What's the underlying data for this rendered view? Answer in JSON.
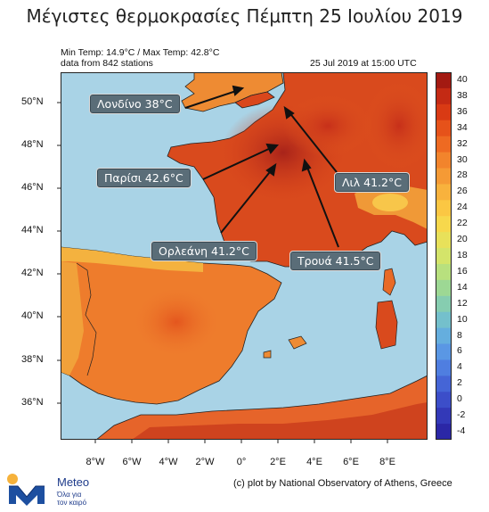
{
  "title": "Μέγιστες θερμοκρασίες Πέμπτη 25 Ιουλίου 2019",
  "info": {
    "minmax": "Min Temp: 14.9°C / Max Temp: 42.8°C",
    "stations": "data from 842 stations",
    "datetime": "25 Jul 2019 at 15:00 UTC"
  },
  "axes": {
    "lat_labels": [
      "50°N",
      "48°N",
      "46°N",
      "44°N",
      "42°N",
      "40°N",
      "38°N",
      "36°N"
    ],
    "lon_labels": [
      "8°W",
      "6°W",
      "4°W",
      "2°W",
      "0°",
      "2°E",
      "4°E",
      "6°E",
      "8°E"
    ]
  },
  "colorbar": {
    "labels": [
      "40",
      "38",
      "36",
      "34",
      "32",
      "30",
      "28",
      "26",
      "24",
      "22",
      "20",
      "18",
      "16",
      "14",
      "12",
      "10",
      "8",
      "6",
      "4",
      "2",
      "0",
      "-2",
      "-4"
    ],
    "colors": [
      "#a31a12",
      "#c42a14",
      "#d93a14",
      "#e6521a",
      "#ee6a22",
      "#f2842c",
      "#f59a35",
      "#f8b23d",
      "#fbc743",
      "#f7d84c",
      "#e8e15a",
      "#d4e46a",
      "#b8e07e",
      "#9dd894",
      "#86cdb0",
      "#74c0cc",
      "#65aede",
      "#5a97e4",
      "#4f7ee0",
      "#4565d6",
      "#3c4ec9",
      "#3339b8",
      "#2b27a6"
    ]
  },
  "callouts": {
    "london": "Λονδίνο 38°C",
    "paris": "Παρίσι 42.6°C",
    "orleans": "Ορλεάνη 41.2°C",
    "lille": "Λιλ 41.2°C",
    "troyes": "Τρουά 41.5°C"
  },
  "footer": {
    "credit": "(c) plot by National Observatory of Athens, Greece",
    "logo_name": "Meteo",
    "logo_sub1": "Όλα για",
    "logo_sub2": "τον καιρό"
  }
}
